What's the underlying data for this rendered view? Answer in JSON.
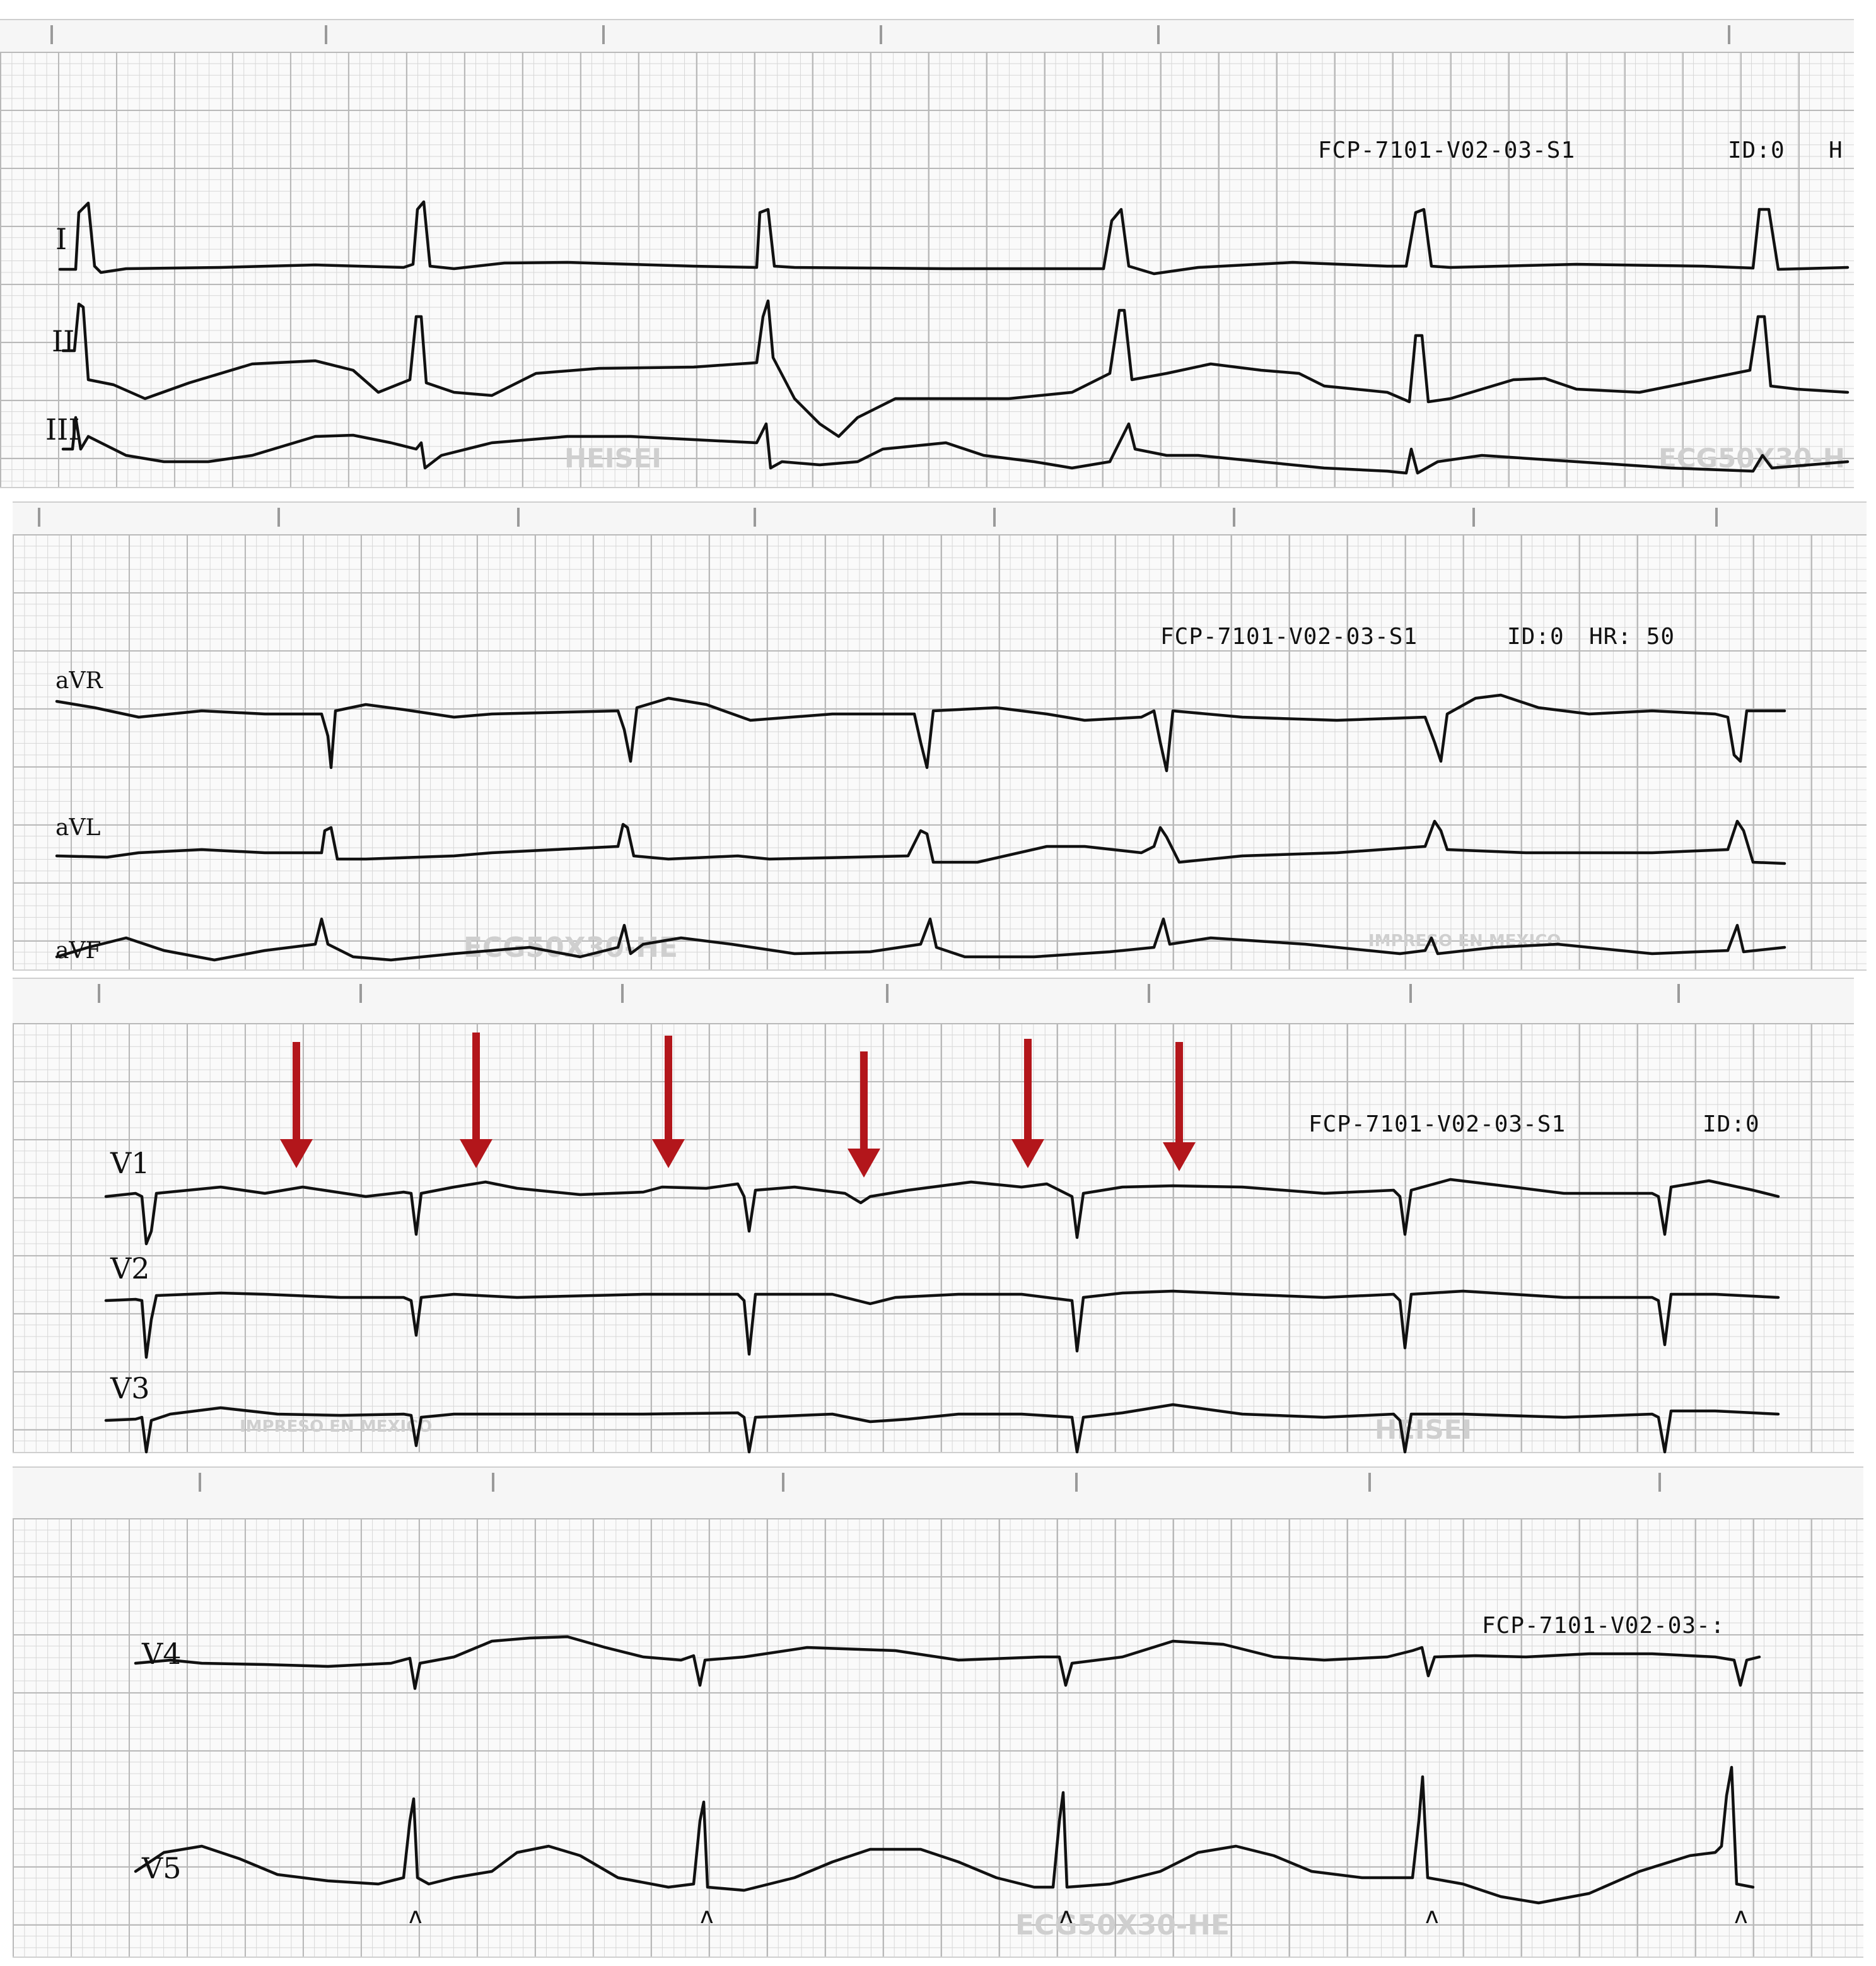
{
  "strips": [
    {
      "header": "FCP-7101-V02-03-S1",
      "id_text": "ID:0",
      "hr_text": "H",
      "leads": [
        "I",
        "II",
        "III"
      ],
      "watermarks": [
        "HEISEI",
        "ECG50X30-H"
      ]
    },
    {
      "header": "FCP-7101-V02-03-S1",
      "id_text": "ID:0",
      "hr_text": "HR: 50",
      "leads": [
        "aVR",
        "aVL",
        "aVF"
      ],
      "watermarks": [
        "ECG50X30-HE",
        "IMPRESO EN MEXICO"
      ]
    },
    {
      "header": "FCP-7101-V02-03-S1",
      "id_text": "ID:0",
      "hr_text": "",
      "leads": [
        "V1",
        "V2",
        "V3"
      ],
      "watermarks": [
        "IMPRESO EN MEXICO",
        "HEISEI"
      ]
    },
    {
      "header": "FCP-7101-V02-03-:",
      "id_text": "",
      "hr_text": "",
      "leads": [
        "V4",
        "V5"
      ],
      "watermarks": [
        "ECG50X30-HE"
      ]
    }
  ],
  "annotations": {
    "arrow_color": "#b3161b",
    "arrow_count": 6,
    "pacing_marker": "ʌ"
  },
  "colors": {
    "trace": "#111111",
    "grid_major": "#b9b9b9",
    "grid_minor": "#d7d7d7",
    "watermark": "#cfcfcf"
  }
}
